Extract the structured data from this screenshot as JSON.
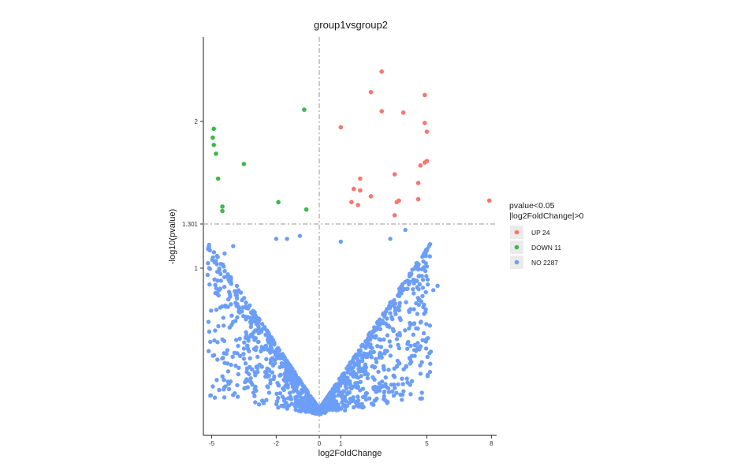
{
  "chart_data": {
    "type": "scatter",
    "title": "group1vsgroup2",
    "xlabel": "log2FoldChange",
    "ylabel": "-log10(pvalue)",
    "xlim": [
      -5.5,
      8.3
    ],
    "ylim": [
      0,
      2.6
    ],
    "x_ticks": [
      -5,
      -2,
      0,
      1,
      5,
      8
    ],
    "y_ticks": [
      1,
      1.301,
      2
    ],
    "grid": false,
    "thresholds": {
      "x": 0,
      "y": 1.301
    },
    "legend": {
      "title_line1": "pvalue<0.05",
      "title_line2": "|log2FoldChange|>0",
      "position": "right",
      "entries": [
        {
          "label": "UP 24",
          "color": "#F8766D"
        },
        {
          "label": "DOWN 11",
          "color": "#3DB84B"
        },
        {
          "label": "NO 2287",
          "color": "#6C9EF8"
        }
      ]
    },
    "series": [
      {
        "name": "UP 24",
        "color": "#F8766D",
        "points": [
          [
            2.9,
            2.34
          ],
          [
            2.4,
            2.2
          ],
          [
            4.9,
            2.18
          ],
          [
            2.9,
            2.07
          ],
          [
            3.9,
            2.06
          ],
          [
            1.0,
            1.96
          ],
          [
            4.9,
            1.99
          ],
          [
            5.0,
            1.93
          ],
          [
            5.0,
            1.73
          ],
          [
            4.9,
            1.72
          ],
          [
            4.7,
            1.7
          ],
          [
            3.5,
            1.64
          ],
          [
            1.9,
            1.61
          ],
          [
            4.6,
            1.58
          ],
          [
            1.6,
            1.54
          ],
          [
            1.9,
            1.53
          ],
          [
            2.4,
            1.49
          ],
          [
            3.7,
            1.46
          ],
          [
            1.5,
            1.45
          ],
          [
            4.6,
            1.47
          ],
          [
            7.9,
            1.46
          ],
          [
            3.6,
            1.45
          ],
          [
            1.8,
            1.43
          ],
          [
            3.5,
            1.36
          ]
        ]
      },
      {
        "name": "DOWN 11",
        "color": "#3DB84B",
        "points": [
          [
            -0.7,
            2.08
          ],
          [
            -4.9,
            1.95
          ],
          [
            -4.95,
            1.89
          ],
          [
            -4.9,
            1.84
          ],
          [
            -4.8,
            1.78
          ],
          [
            -3.5,
            1.71
          ],
          [
            -4.7,
            1.61
          ],
          [
            -1.9,
            1.45
          ],
          [
            -4.5,
            1.42
          ],
          [
            -4.5,
            1.39
          ],
          [
            -0.6,
            1.4
          ]
        ]
      },
      {
        "name": "NO 2287",
        "color": "#6C9EF8",
        "shape": "volcano cloud: -log10(p) roughly 0.22*|log2FoldChange| up to 1.301, densest near origin",
        "points": []
      }
    ]
  }
}
